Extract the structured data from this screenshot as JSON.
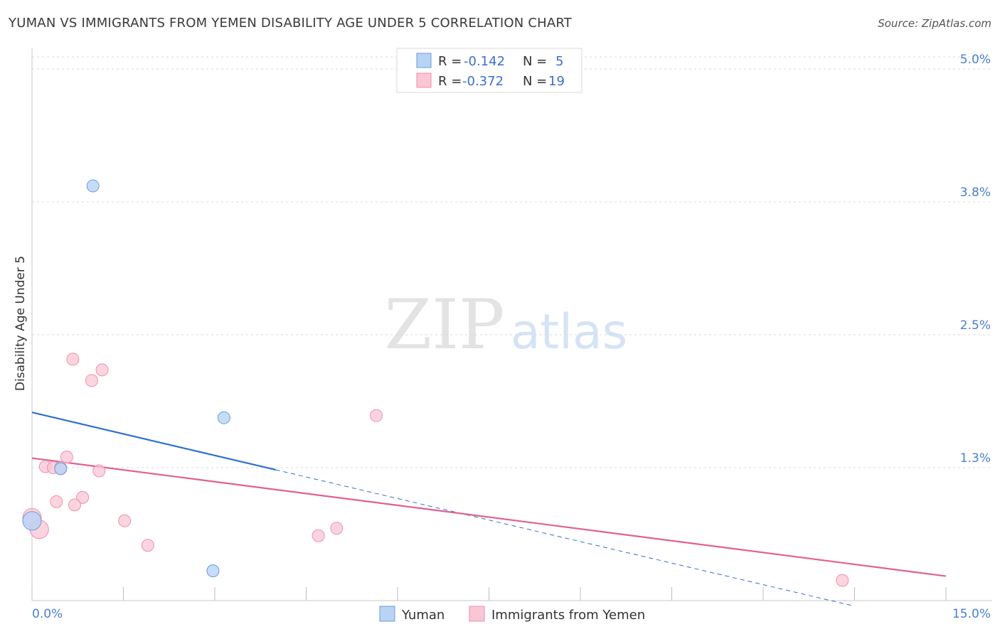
{
  "title": "YUMAN VS IMMIGRANTS FROM YEMEN DISABILITY AGE UNDER 5 CORRELATION CHART",
  "source": "Source: ZipAtlas.com",
  "watermark": {
    "zip": "ZIP",
    "atlas": "atlas"
  },
  "colors": {
    "yuman_fill": "#b9d3f5",
    "yuman_stroke": "#6c9ae0",
    "yuman_line": "#2f6fd0",
    "yemen_fill": "#f9c6d4",
    "yemen_stroke": "#ef8fab",
    "yemen_line": "#e0608f",
    "axis_label": "#4a7fcf",
    "grid": "#d8d8d8"
  },
  "legend": {
    "rows": [
      {
        "r_label": "R =",
        "r_value": "-0.142",
        "n_label": "N =",
        "n_value": "5"
      },
      {
        "r_label": "R =",
        "r_value": "-0.372",
        "n_label": "N =",
        "n_value": "19"
      }
    ]
  },
  "chart_data": {
    "type": "scatter",
    "title": "YUMAN VS IMMIGRANTS FROM YEMEN DISABILITY AGE UNDER 5 CORRELATION CHART",
    "xlabel": "",
    "ylabel": "Disability Age Under 5",
    "xlim": [
      0.0,
      15.0
    ],
    "ylim": [
      0.0,
      5.0
    ],
    "x_tick_labels": [
      "0.0%",
      "15.0%"
    ],
    "y_ticks": [
      {
        "value": 1.25,
        "label": "1.3%"
      },
      {
        "value": 2.5,
        "label": "2.5%"
      },
      {
        "value": 3.75,
        "label": "3.8%"
      },
      {
        "value": 5.0,
        "label": "5.0%"
      }
    ],
    "series": [
      {
        "name": "Yuman",
        "r": -0.142,
        "n": 5,
        "points": [
          {
            "x": 1.0,
            "y": 3.9
          },
          {
            "x": 3.15,
            "y": 1.72
          },
          {
            "x": 0.47,
            "y": 1.24
          },
          {
            "x": 0.0,
            "y": 0.75
          },
          {
            "x": 2.97,
            "y": 0.28
          }
        ],
        "trend": {
          "x0": 0.0,
          "y0": 1.77,
          "x1": 4.0,
          "y1": 1.23,
          "dash_to_x": 13.5
        }
      },
      {
        "name": "Immigrants from Yemen",
        "r": -0.372,
        "n": 19,
        "points": [
          {
            "x": 0.67,
            "y": 2.27
          },
          {
            "x": 1.15,
            "y": 2.17
          },
          {
            "x": 0.98,
            "y": 2.07
          },
          {
            "x": 5.65,
            "y": 1.74
          },
          {
            "x": 0.57,
            "y": 1.35
          },
          {
            "x": 0.22,
            "y": 1.26
          },
          {
            "x": 0.35,
            "y": 1.25
          },
          {
            "x": 0.47,
            "y": 1.25
          },
          {
            "x": 1.1,
            "y": 1.22
          },
          {
            "x": 0.83,
            "y": 0.97
          },
          {
            "x": 0.4,
            "y": 0.93
          },
          {
            "x": 0.7,
            "y": 0.9
          },
          {
            "x": 0.0,
            "y": 0.78
          },
          {
            "x": 1.52,
            "y": 0.75
          },
          {
            "x": 0.12,
            "y": 0.67
          },
          {
            "x": 5.0,
            "y": 0.68
          },
          {
            "x": 4.7,
            "y": 0.61
          },
          {
            "x": 1.9,
            "y": 0.52
          },
          {
            "x": 13.3,
            "y": 0.19
          }
        ],
        "trend": {
          "x0": 0.0,
          "y0": 1.34,
          "x1": 15.0,
          "y1": 0.23
        }
      }
    ]
  }
}
